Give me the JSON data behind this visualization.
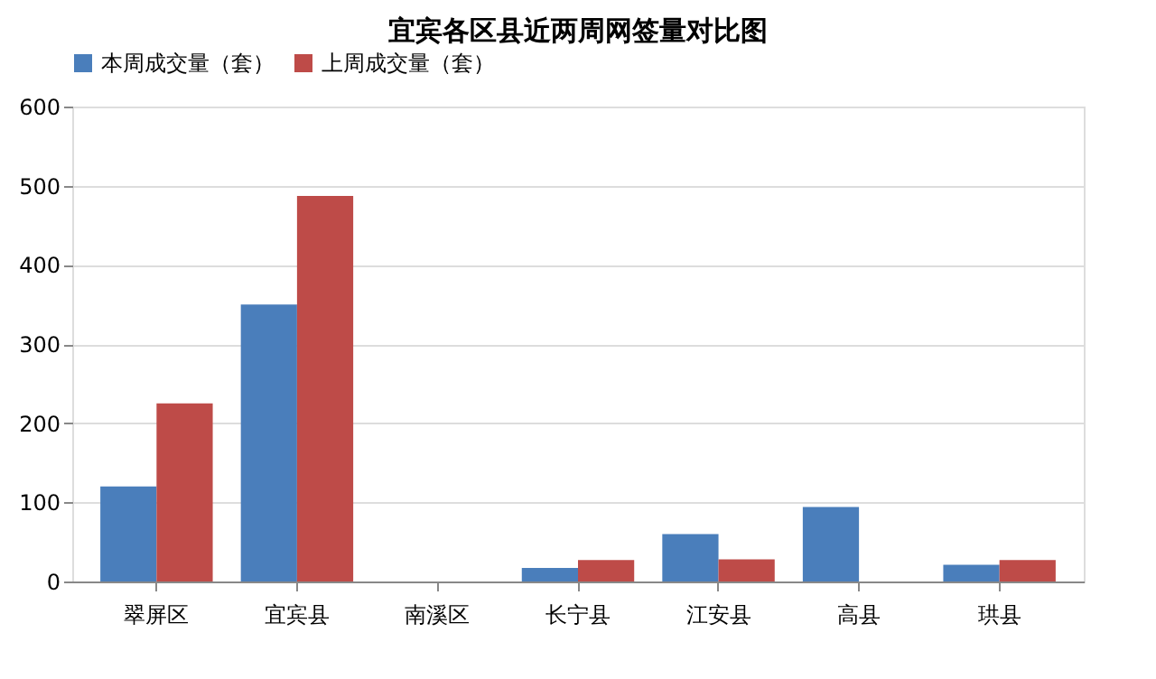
{
  "chart_data": {
    "type": "bar",
    "title": "宜宾各区县近两周网签量对比图",
    "categories": [
      "翠屏区",
      "宜宾县",
      "南溪区",
      "长宁县",
      "江安县",
      "高县",
      "珙县"
    ],
    "series": [
      {
        "name": "本周成交量（套）",
        "color": "#4a7ebb",
        "values": [
          120,
          350,
          0,
          17,
          60,
          94,
          21
        ]
      },
      {
        "name": "上周成交量（套）",
        "color": "#be4b48",
        "values": [
          225,
          487,
          0,
          27,
          28,
          null,
          27
        ]
      }
    ],
    "ylim": [
      0,
      600
    ],
    "yticks": [
      0,
      100,
      200,
      300,
      400,
      500,
      600
    ],
    "grid": "y",
    "legend": "top"
  }
}
